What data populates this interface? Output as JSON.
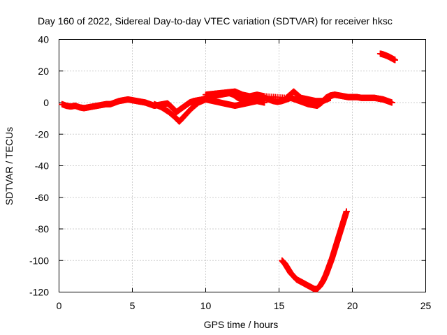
{
  "chart_data": {
    "type": "scatter",
    "title": "Day 160 of 2022, Sidereal Day-to-day VTEC variation (SDTVAR) for receiver hksc",
    "xlabel": "GPS time / hours",
    "ylabel": "SDTVAR / TECUs",
    "xlim": [
      0,
      25
    ],
    "ylim": [
      -120,
      40
    ],
    "xticks": [
      0,
      5,
      10,
      15,
      20,
      25
    ],
    "yticks": [
      -120,
      -100,
      -80,
      -60,
      -40,
      -20,
      0,
      20,
      40
    ],
    "grid": true,
    "marker": "plus",
    "color": "#ff0000",
    "series": [
      {
        "name": "main_band",
        "x": [
          0.2,
          0.5,
          0.8,
          1.1,
          1.4,
          1.7,
          2.0,
          2.3,
          2.6,
          2.9,
          3.2,
          3.5,
          3.8,
          4.1,
          4.4,
          4.7,
          5.0,
          5.3,
          5.6,
          5.9,
          6.2,
          6.5,
          6.8,
          7.1,
          7.4,
          7.7,
          8.0,
          8.3,
          8.6,
          8.9,
          9.2,
          9.5,
          9.8,
          10.1,
          10.4,
          10.7,
          11.0,
          11.3,
          11.6,
          11.9,
          12.2,
          12.5,
          12.8,
          13.1,
          13.4,
          13.7,
          14.0,
          14.3,
          14.6,
          14.9,
          15.2,
          15.5,
          15.8,
          16.1,
          16.4,
          16.7,
          17.0,
          17.3,
          17.6,
          17.9,
          18.2,
          18.5,
          18.8,
          19.1,
          19.4,
          19.7,
          20.0,
          20.3,
          20.6,
          20.9,
          21.2,
          21.5,
          21.8,
          22.1,
          22.4,
          22.7
        ],
        "y": [
          -1,
          -2,
          -2.5,
          -2,
          -3,
          -3.5,
          -3,
          -2.5,
          -2,
          -1.5,
          -1,
          -1,
          0,
          1,
          1.5,
          2,
          1.5,
          1,
          0.5,
          0,
          -1,
          -2,
          -1.5,
          -1,
          -0.5,
          -3,
          -6,
          -4,
          -2,
          0,
          1,
          1.5,
          2,
          3,
          4,
          4.5,
          5,
          5.5,
          6,
          5,
          3,
          2,
          1,
          2,
          3,
          4,
          3,
          2,
          1,
          0.5,
          1,
          2,
          3,
          2,
          1,
          0,
          -1,
          -1.5,
          -2,
          0,
          3,
          4.5,
          5,
          4.5,
          4,
          3.5,
          3.5,
          3.5,
          3,
          3,
          3,
          3,
          2.5,
          2,
          1,
          0
        ]
      },
      {
        "name": "lower_branch",
        "x": [
          6.5,
          7.0,
          7.5,
          8.0,
          8.2,
          8.5,
          9.0,
          9.5,
          10.0,
          10.5,
          11.0,
          11.5,
          12.0,
          12.5,
          13.0,
          13.5,
          14.0
        ],
        "y": [
          -1,
          -3,
          -6,
          -10,
          -12,
          -9,
          -4,
          0,
          2,
          1,
          0,
          -1,
          -2,
          -1,
          0,
          1,
          0
        ]
      },
      {
        "name": "upper_branch",
        "x": [
          10.0,
          10.5,
          11.0,
          11.5,
          12.0,
          12.5,
          13.0,
          13.5,
          14.0,
          15.5,
          16.0,
          16.5,
          17.0,
          17.5,
          18.0,
          18.5
        ],
        "y": [
          5,
          5.5,
          6,
          6.5,
          7,
          5,
          4,
          5,
          4,
          3,
          7,
          3,
          2,
          1,
          1,
          3
        ]
      },
      {
        "name": "late_segment",
        "x": [
          21.9,
          22.1,
          22.3,
          22.5,
          22.7,
          22.9
        ],
        "y": [
          31,
          30.5,
          29.8,
          29,
          28,
          27
        ]
      },
      {
        "name": "outlier_curve",
        "x": [
          15.2,
          15.4,
          15.6,
          15.8,
          16.0,
          16.2,
          16.4,
          16.6,
          16.8,
          17.0,
          17.2,
          17.4,
          17.6,
          17.8,
          18.0,
          18.2,
          18.4,
          18.6,
          18.8,
          19.0,
          19.2,
          19.4,
          19.6
        ],
        "y": [
          -100,
          -102,
          -105,
          -108,
          -110,
          -112,
          -113,
          -114,
          -115,
          -116,
          -117,
          -118,
          -118,
          -116,
          -113,
          -109,
          -104,
          -99,
          -93,
          -87,
          -81,
          -75,
          -69
        ]
      }
    ]
  }
}
